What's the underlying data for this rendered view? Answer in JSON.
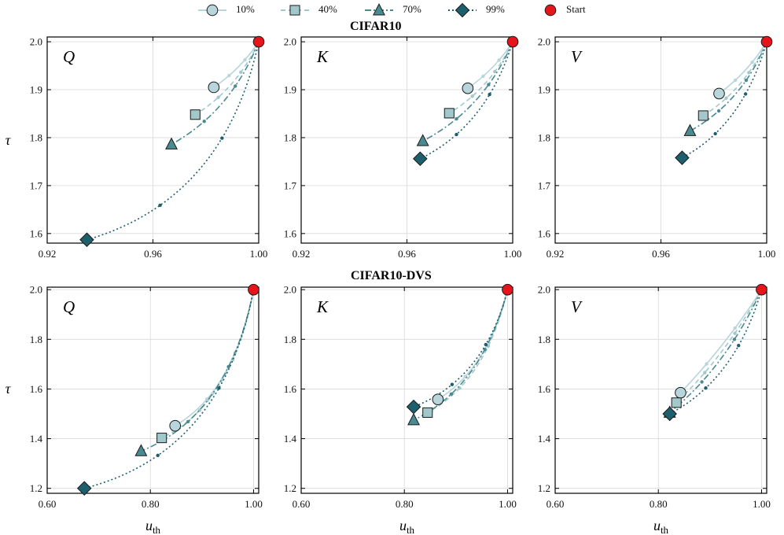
{
  "legend": [
    {
      "label": "10%",
      "marker": "circle",
      "color": "#b7d5da",
      "dash": "solid"
    },
    {
      "label": "40%",
      "marker": "square",
      "color": "#a2c8cb",
      "dash": "dashed"
    },
    {
      "label": "70%",
      "marker": "triangle",
      "color": "#4a8a90",
      "dash": "dashdot"
    },
    {
      "label": "99%",
      "marker": "diamond",
      "color": "#1d5f6c",
      "dash": "dotted"
    },
    {
      "label": "Start",
      "marker": "start",
      "color": "#e8141b",
      "dash": "none"
    }
  ],
  "row_titles": [
    "CIFAR10",
    "CIFAR10-DVS"
  ],
  "xlabel": "u_th",
  "ylabel": "τ",
  "colors": {
    "start": "#e8141b",
    "grid": "#d9d9d9",
    "frame": "#000000"
  },
  "chart_data": [
    {
      "type": "line",
      "label": "Q",
      "row": 0,
      "col": 0,
      "xlim": [
        0.92,
        1.0
      ],
      "ylim": [
        1.58,
        2.01
      ],
      "xticks": [
        0.92,
        0.96,
        1.0
      ],
      "xtick_labels": [
        "0.92",
        "0.96",
        "1.00"
      ],
      "yticks": [
        1.6,
        1.7,
        1.8,
        1.9,
        2.0
      ],
      "ytick_labels": [
        "1.6",
        "1.7",
        "1.8",
        "1.9",
        "2.0"
      ],
      "start": [
        1.0,
        2.0
      ],
      "series": [
        {
          "name": "10%",
          "end": [
            0.983,
            1.905
          ],
          "bend": 0.1
        },
        {
          "name": "40%",
          "end": [
            0.976,
            1.848
          ],
          "bend": 0.15
        },
        {
          "name": "70%",
          "end": [
            0.967,
            1.786
          ],
          "bend": 0.18
        },
        {
          "name": "99%",
          "end": [
            0.935,
            1.587
          ],
          "bend": 0.3
        }
      ]
    },
    {
      "type": "line",
      "label": "K",
      "row": 0,
      "col": 1,
      "xlim": [
        0.92,
        1.0
      ],
      "ylim": [
        1.58,
        2.01
      ],
      "xticks": [
        0.92,
        0.96,
        1.0
      ],
      "xtick_labels": [
        "0.92",
        "0.96",
        "1.00"
      ],
      "yticks": [
        1.6,
        1.7,
        1.8,
        1.9,
        2.0
      ],
      "ytick_labels": [
        "1.6",
        "1.7",
        "1.8",
        "1.9",
        "2.0"
      ],
      "start": [
        1.0,
        2.0
      ],
      "series": [
        {
          "name": "10%",
          "end": [
            0.983,
            1.903
          ],
          "bend": 0.1
        },
        {
          "name": "40%",
          "end": [
            0.976,
            1.851
          ],
          "bend": 0.15
        },
        {
          "name": "70%",
          "end": [
            0.966,
            1.793
          ],
          "bend": 0.18
        },
        {
          "name": "99%",
          "end": [
            0.965,
            1.756
          ],
          "bend": 0.22
        }
      ]
    },
    {
      "type": "line",
      "label": "V",
      "row": 0,
      "col": 2,
      "xlim": [
        0.92,
        1.0
      ],
      "ylim": [
        1.58,
        2.01
      ],
      "xticks": [
        0.92,
        0.96,
        1.0
      ],
      "xtick_labels": [
        "0.92",
        "0.96",
        "1.00"
      ],
      "yticks": [
        1.6,
        1.7,
        1.8,
        1.9,
        2.0
      ],
      "ytick_labels": [
        "1.6",
        "1.7",
        "1.8",
        "1.9",
        "2.0"
      ],
      "start": [
        1.0,
        2.0
      ],
      "series": [
        {
          "name": "10%",
          "end": [
            0.982,
            1.892
          ],
          "bend": 0.1
        },
        {
          "name": "40%",
          "end": [
            0.976,
            1.846
          ],
          "bend": 0.15
        },
        {
          "name": "70%",
          "end": [
            0.971,
            1.814
          ],
          "bend": 0.18
        },
        {
          "name": "99%",
          "end": [
            0.968,
            1.758
          ],
          "bend": 0.22
        }
      ]
    },
    {
      "type": "line",
      "label": "Q",
      "row": 1,
      "col": 0,
      "xlim": [
        0.6,
        1.01
      ],
      "ylim": [
        1.18,
        2.01
      ],
      "xticks": [
        0.6,
        0.8,
        1.0
      ],
      "xtick_labels": [
        "0.60",
        "0.80",
        "1.00"
      ],
      "yticks": [
        1.2,
        1.4,
        1.6,
        1.8,
        2.0
      ],
      "ytick_labels": [
        "1.2",
        "1.4",
        "1.6",
        "1.8",
        "2.0"
      ],
      "start": [
        1.0,
        2.0
      ],
      "series": [
        {
          "name": "10%",
          "end": [
            0.848,
            1.452
          ],
          "bend": 0.25
        },
        {
          "name": "40%",
          "end": [
            0.822,
            1.403
          ],
          "bend": 0.27
        },
        {
          "name": "70%",
          "end": [
            0.782,
            1.35
          ],
          "bend": 0.28
        },
        {
          "name": "99%",
          "end": [
            0.672,
            1.2
          ],
          "bend": 0.32
        }
      ]
    },
    {
      "type": "line",
      "label": "K",
      "row": 1,
      "col": 1,
      "xlim": [
        0.6,
        1.01
      ],
      "ylim": [
        1.18,
        2.01
      ],
      "xticks": [
        0.6,
        0.8,
        1.0
      ],
      "xtick_labels": [
        "0.60",
        "0.80",
        "1.00"
      ],
      "yticks": [
        1.2,
        1.4,
        1.6,
        1.8,
        2.0
      ],
      "ytick_labels": [
        "1.2",
        "1.4",
        "1.6",
        "1.8",
        "2.0"
      ],
      "start": [
        1.0,
        2.0
      ],
      "series": [
        {
          "name": "10%",
          "end": [
            0.865,
            1.558
          ],
          "bend": 0.22
        },
        {
          "name": "40%",
          "end": [
            0.845,
            1.505
          ],
          "bend": 0.24
        },
        {
          "name": "70%",
          "end": [
            0.818,
            1.475
          ],
          "bend": 0.24
        },
        {
          "name": "99%",
          "end": [
            0.818,
            1.528
          ],
          "bend": 0.26
        }
      ]
    },
    {
      "type": "line",
      "label": "V",
      "row": 1,
      "col": 2,
      "xlim": [
        0.6,
        1.01
      ],
      "ylim": [
        1.18,
        2.01
      ],
      "xticks": [
        0.6,
        0.8,
        1.0
      ],
      "xtick_labels": [
        "0.60",
        "0.80",
        "1.00"
      ],
      "yticks": [
        1.2,
        1.4,
        1.6,
        1.8,
        2.0
      ],
      "ytick_labels": [
        "1.2",
        "1.4",
        "1.6",
        "1.8",
        "2.0"
      ],
      "start": [
        1.0,
        2.0
      ],
      "series": [
        {
          "name": "10%",
          "end": [
            0.843,
            1.585
          ],
          "bend": 0.05
        },
        {
          "name": "40%",
          "end": [
            0.835,
            1.545
          ],
          "bend": 0.08
        },
        {
          "name": "70%",
          "end": [
            0.822,
            1.505
          ],
          "bend": 0.12
        },
        {
          "name": "99%",
          "end": [
            0.822,
            1.5
          ],
          "bend": 0.22
        }
      ]
    }
  ]
}
